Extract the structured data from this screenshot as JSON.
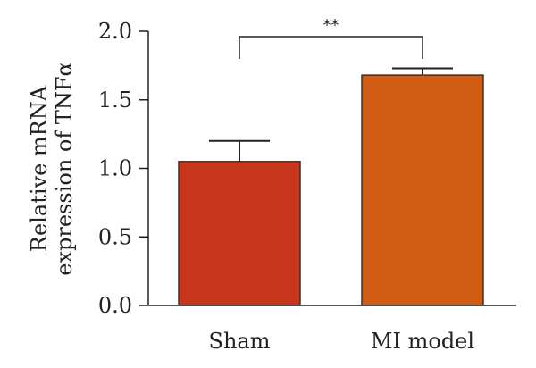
{
  "chart_data": {
    "type": "bar",
    "categories": [
      "Sham",
      "MI model"
    ],
    "values": [
      1.05,
      1.68
    ],
    "errors": [
      0.15,
      0.05
    ],
    "colors": [
      "#c7361c",
      "#d15c14"
    ],
    "ylabel_line1": "Relative mRNA",
    "ylabel_line2": "expression of TNFα",
    "ylim": [
      0,
      2.0
    ],
    "yticks": [
      0.0,
      0.5,
      1.0,
      1.5,
      2.0
    ],
    "ytick_labels": [
      "0.0",
      "0.5",
      "1.0",
      "1.5",
      "2.0"
    ],
    "significance": {
      "label": "**",
      "between": [
        0,
        1
      ]
    },
    "grid": false,
    "legend": "none"
  }
}
